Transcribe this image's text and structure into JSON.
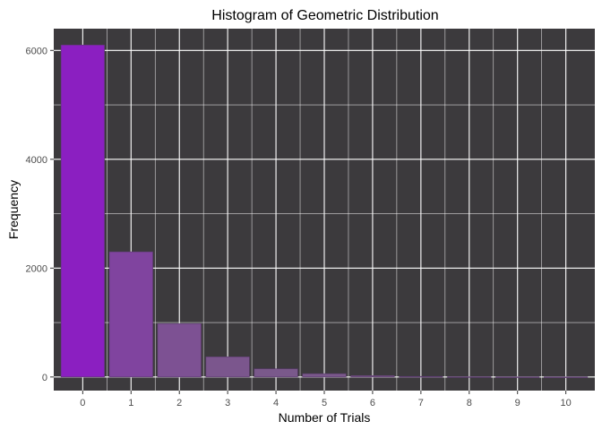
{
  "chart_data": {
    "type": "bar",
    "title": "Histogram of Geometric Distribution",
    "xlabel": "Number of Trials",
    "ylabel": "Frequency",
    "categories": [
      "0",
      "1",
      "2",
      "3",
      "4",
      "5",
      "6",
      "7",
      "8",
      "9",
      "10"
    ],
    "values": [
      6100,
      2300,
      980,
      370,
      150,
      60,
      25,
      10,
      5,
      2,
      1
    ],
    "ylim": [
      -250,
      6400
    ],
    "yticks": [
      0,
      2000,
      4000,
      6000
    ],
    "grid": true,
    "legend": "none",
    "colors": {
      "panel_background": "#3c3a3d",
      "grid_line": "#ffffff",
      "bar_high": "#8b1fc1",
      "bar_low": "#7a5a8a",
      "bar_outline": "#5b3a6e"
    }
  }
}
